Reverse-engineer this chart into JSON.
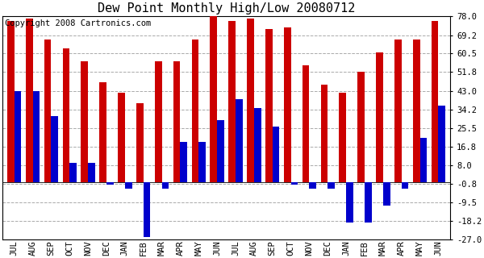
{
  "title": "Dew Point Monthly High/Low 20080712",
  "copyright": "Copyright 2008 Cartronics.com",
  "months": [
    "JUL",
    "AUG",
    "SEP",
    "OCT",
    "NOV",
    "DEC",
    "JAN",
    "FEB",
    "MAR",
    "APR",
    "MAY",
    "JUN",
    "JUL",
    "AUG",
    "SEP",
    "OCT",
    "NOV",
    "DEC",
    "JAN",
    "FEB",
    "MAR",
    "APR",
    "MAY",
    "JUN"
  ],
  "highs": [
    76,
    77,
    67,
    63,
    57,
    47,
    42,
    37,
    57,
    57,
    67,
    78,
    76,
    77,
    72,
    73,
    55,
    46,
    42,
    52,
    61,
    67,
    67,
    76
  ],
  "lows": [
    43,
    43,
    31,
    9,
    9,
    -1,
    -3,
    -26,
    -3,
    19,
    19,
    29,
    39,
    35,
    26,
    -1,
    -3,
    -3,
    -19,
    -19,
    -11,
    -3,
    21,
    36
  ],
  "ylim": [
    -27,
    78
  ],
  "yticks": [
    78.0,
    69.2,
    60.5,
    51.8,
    43.0,
    34.2,
    25.5,
    16.8,
    8.0,
    -0.8,
    -9.5,
    -18.2,
    -27.0
  ],
  "ytick_labels": [
    "78.0",
    "69.2",
    "60.5",
    "51.8",
    "43.0",
    "34.2",
    "25.5",
    "16.8",
    "8.0",
    "-0.8",
    "-9.5",
    "-18.2",
    "-27.0"
  ],
  "high_color": "#cc0000",
  "low_color": "#0000cc",
  "bar_width": 0.38,
  "background_color": "#ffffff",
  "grid_color": "#aaaaaa",
  "title_fontsize": 11,
  "tick_fontsize": 7.5,
  "copyright_fontsize": 7.5
}
